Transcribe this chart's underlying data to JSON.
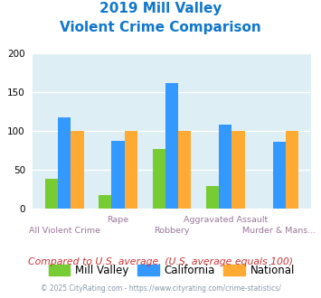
{
  "title_line1": "2019 Mill Valley",
  "title_line2": "Violent Crime Comparison",
  "categories": [
    "All Violent Crime",
    "Rape",
    "Robbery",
    "Aggravated Assault",
    "Murder & Mans..."
  ],
  "mill_valley": [
    38,
    17,
    77,
    29,
    0
  ],
  "california": [
    118,
    87,
    162,
    108,
    86
  ],
  "national": [
    100,
    100,
    100,
    100,
    100
  ],
  "colors": {
    "mill_valley": "#77cc33",
    "california": "#3399ff",
    "national": "#ffaa33"
  },
  "ylim": [
    0,
    200
  ],
  "yticks": [
    0,
    50,
    100,
    150,
    200
  ],
  "plot_bg": "#ddeef5",
  "title_color": "#1177cc",
  "xlabel_color_top": "#997799",
  "xlabel_color_bot": "#997799",
  "footer_text": "Compared to U.S. average. (U.S. average equals 100)",
  "credit_text": "© 2025 CityRating.com - https://www.cityrating.com/crime-statistics/",
  "footer_color": "#cc3333",
  "credit_color": "#8899aa",
  "legend_labels": [
    "Mill Valley",
    "California",
    "National"
  ]
}
